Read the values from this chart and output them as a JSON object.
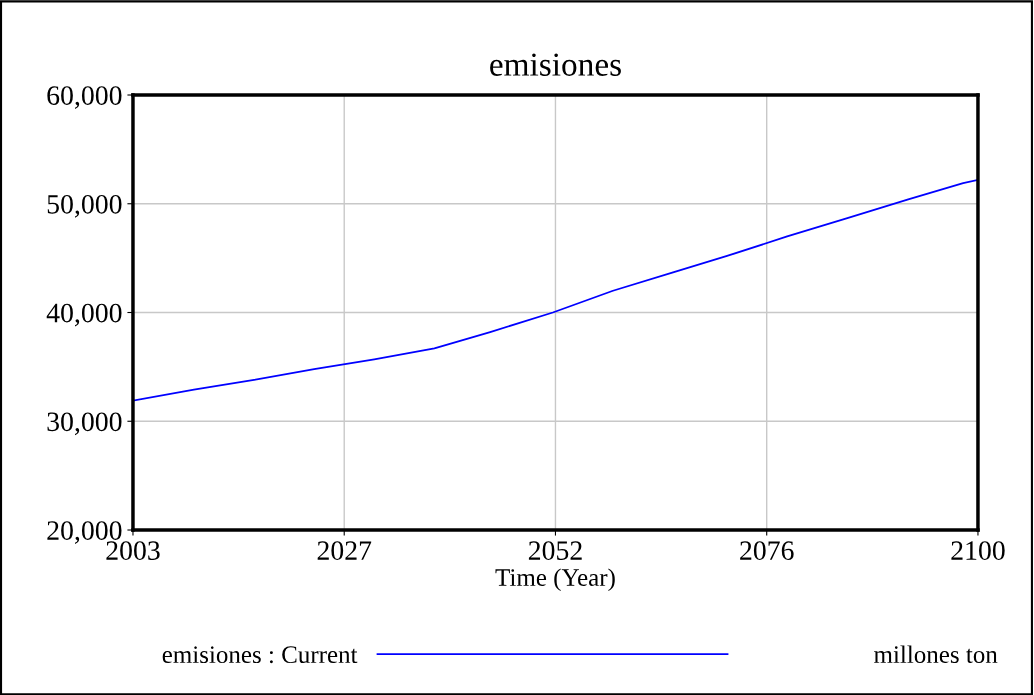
{
  "chart_data": {
    "type": "line",
    "title": "emisiones",
    "xlabel": "Time (Year)",
    "x": [
      2003,
      2010.0,
      2016.9,
      2023.8,
      2030.7,
      2037.6,
      2044.0,
      2051.2,
      2058.1,
      2065.0,
      2071.2,
      2078.1,
      2085.1,
      2092.0,
      2098.3,
      2100
    ],
    "series": [
      {
        "name": "emisiones : Current",
        "color": "#0000ff",
        "values": [
          31900,
          32900,
          33800,
          34800,
          35700,
          36700,
          38200,
          40000,
          42000,
          43700,
          45200,
          47000,
          48700,
          50400,
          51900,
          52200
        ]
      }
    ],
    "xlim": [
      2003,
      2100
    ],
    "xticks": [
      2003,
      {
        "value": 2027.25,
        "label": "2027"
      },
      {
        "value": 2051.5,
        "label": "2052"
      },
      {
        "value": 2075.75,
        "label": "2076"
      },
      2100
    ],
    "ylim": [
      20000,
      60000
    ],
    "yticks": [
      {
        "value": 20000,
        "label": "20,000"
      },
      {
        "value": 30000,
        "label": "30,000"
      },
      {
        "value": 40000,
        "label": "40,000"
      },
      {
        "value": 50000,
        "label": "50,000"
      },
      {
        "value": 60000,
        "label": "60,000"
      }
    ],
    "annotations": [
      "millones ton"
    ],
    "grid": true,
    "legend": "bottom",
    "line_style": "solid"
  }
}
